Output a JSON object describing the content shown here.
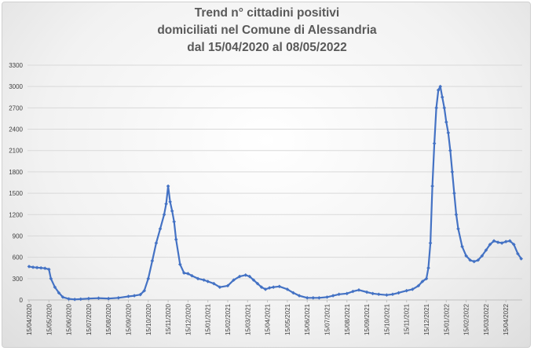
{
  "chart_data": {
    "type": "line",
    "title_lines": [
      "Trend n° cittadini positivi",
      "domiciliati nel Comune di Alessandria",
      "dal 15/04/2020 al 08/05/2022"
    ],
    "xlabel": "",
    "ylabel": "",
    "ylim": [
      0,
      3300
    ],
    "ytick_labels": [
      "0",
      "300",
      "600",
      "900",
      "1200",
      "1500",
      "1800",
      "2100",
      "2400",
      "2700",
      "3000",
      "3300"
    ],
    "xtick_labels": [
      "15/04/2020",
      "15/05/2020",
      "15/06/2020",
      "15/07/2020",
      "15/08/2020",
      "15/09/2020",
      "15/10/2020",
      "15/11/2020",
      "15/12/2020",
      "15/01/2021",
      "15/02/2021",
      "15/03/2021",
      "15/04/2021",
      "15/05/2021",
      "15/06/2021",
      "15/07/2021",
      "15/08/2021",
      "15/09/2021",
      "15/10/2021",
      "15/11/2021",
      "15/12/2021",
      "15/01/2022",
      "15/02/2022",
      "15/03/2022",
      "15/04/2022"
    ],
    "grid": true,
    "legend": "none",
    "series_color": "#4472c4",
    "series": [
      {
        "x_month_index": [
          0,
          0.2,
          0.4,
          0.6,
          0.8,
          1.0,
          1.1,
          1.3,
          1.5,
          1.7,
          2.0,
          2.3,
          2.6,
          3.0,
          3.5,
          4.0,
          4.5,
          5.0,
          5.3,
          5.6,
          5.8,
          6.0,
          6.2,
          6.4,
          6.6,
          6.8,
          6.9,
          7.0,
          7.1,
          7.2,
          7.3,
          7.4,
          7.6,
          7.8,
          8.0,
          8.2,
          8.5,
          8.8,
          9.0,
          9.3,
          9.6,
          10.0,
          10.3,
          10.6,
          10.9,
          11.1,
          11.3,
          11.5,
          11.7,
          11.9,
          12.1,
          12.3,
          12.6,
          13.0,
          13.3,
          13.6,
          14.0,
          14.3,
          14.6,
          15.0,
          15.3,
          15.6,
          16.0,
          16.3,
          16.6,
          17.0,
          17.3,
          17.6,
          18.0,
          18.3,
          18.6,
          19.0,
          19.3,
          19.6,
          19.8,
          20.0,
          20.1,
          20.2,
          20.3,
          20.4,
          20.5,
          20.6,
          20.7,
          20.8,
          20.9,
          21.0,
          21.1,
          21.2,
          21.3,
          21.4,
          21.5,
          21.6,
          21.8,
          22.0,
          22.2,
          22.4,
          22.6,
          22.8,
          23.0,
          23.2,
          23.4,
          23.6,
          23.8,
          24.0,
          24.2,
          24.4,
          24.6,
          24.77
        ],
        "values": [
          470,
          460,
          455,
          450,
          445,
          430,
          300,
          180,
          100,
          40,
          15,
          8,
          12,
          20,
          25,
          20,
          30,
          50,
          60,
          75,
          130,
          300,
          550,
          800,
          1000,
          1200,
          1350,
          1600,
          1380,
          1250,
          1100,
          850,
          500,
          380,
          370,
          340,
          300,
          280,
          260,
          230,
          180,
          200,
          280,
          330,
          350,
          330,
          280,
          230,
          180,
          150,
          170,
          180,
          190,
          150,
          100,
          60,
          30,
          30,
          30,
          40,
          60,
          80,
          90,
          120,
          140,
          110,
          90,
          80,
          70,
          80,
          100,
          130,
          150,
          200,
          260,
          300,
          450,
          800,
          1600,
          2200,
          2700,
          2950,
          3000,
          2850,
          2700,
          2500,
          2350,
          2100,
          1800,
          1500,
          1200,
          1000,
          750,
          620,
          560,
          540,
          560,
          620,
          700,
          780,
          830,
          810,
          800,
          820,
          830,
          780,
          650,
          580
        ]
      }
    ]
  }
}
